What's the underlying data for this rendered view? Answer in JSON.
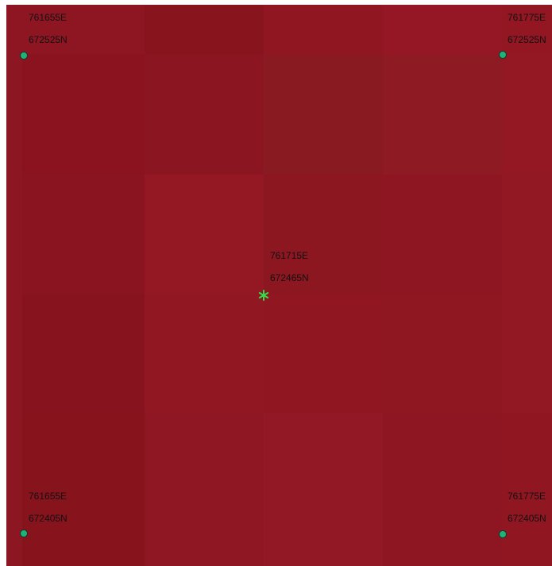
{
  "map": {
    "colors": {
      "pixel_palette": [
        "#8a1420",
        "#8c1521",
        "#8f1622",
        "#921823",
        "#941924",
        "#8b1a22",
        "#901c26",
        "#961a26"
      ],
      "corner_marker": "#1fb37a",
      "center_marker": "#2ee04a",
      "label_text": "#111111"
    },
    "corners": [
      {
        "name": "top-left",
        "easting": "761655E",
        "northing": "672525N"
      },
      {
        "name": "top-right",
        "easting": "761775E",
        "northing": "672525N"
      },
      {
        "name": "bottom-left",
        "easting": "761655E",
        "northing": "672405N"
      },
      {
        "name": "bottom-right",
        "easting": "761775E",
        "northing": "672405N"
      }
    ],
    "center": {
      "easting": "761715E",
      "northing": "672465N"
    }
  }
}
